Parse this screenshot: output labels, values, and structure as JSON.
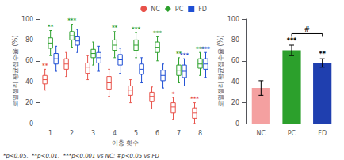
{
  "chart_data": [
    {
      "type": "boxplot",
      "xlabel": "이충 횟수",
      "ylabel": "로열젤리 평균접수율 (%)",
      "categories": [
        "1",
        "2",
        "3",
        "4",
        "5",
        "6",
        "7",
        "8"
      ],
      "series": [
        {
          "name": "NC",
          "color": "#E8524A",
          "marker": "circle",
          "values": [
            42,
            57,
            54,
            39,
            32,
            26,
            16,
            10
          ],
          "q1": [
            38,
            52,
            48,
            33,
            27,
            21,
            10,
            5
          ],
          "q3": [
            46,
            62,
            58,
            45,
            36,
            30,
            20,
            15
          ],
          "whislo": [
            32,
            45,
            42,
            26,
            20,
            14,
            4,
            0
          ],
          "whishi": [
            52,
            68,
            65,
            52,
            42,
            35,
            25,
            20
          ],
          "annotations": [
            "**",
            null,
            null,
            null,
            null,
            null,
            "*",
            "***"
          ]
        },
        {
          "name": "PC",
          "color": "#2CA02C",
          "marker": "diamond",
          "values": [
            77,
            84,
            67,
            75,
            75,
            73,
            51,
            57
          ],
          "q1": [
            72,
            80,
            63,
            70,
            70,
            68,
            46,
            53
          ],
          "q3": [
            82,
            88,
            71,
            80,
            80,
            78,
            56,
            62
          ],
          "whislo": [
            65,
            73,
            56,
            63,
            63,
            60,
            39,
            46
          ],
          "whishi": [
            89,
            95,
            78,
            88,
            87,
            83,
            63,
            68
          ],
          "annotations": [
            "**",
            "***",
            null,
            "**",
            "***",
            "***",
            "**",
            "***"
          ]
        },
        {
          "name": "FD",
          "color": "#1F4FD4",
          "marker": "square",
          "values": [
            62,
            79,
            63,
            61,
            52,
            46,
            50,
            57
          ],
          "q1": [
            57,
            75,
            58,
            56,
            47,
            41,
            44,
            52
          ],
          "q3": [
            67,
            83,
            68,
            66,
            57,
            51,
            56,
            62
          ],
          "whislo": [
            50,
            68,
            50,
            48,
            39,
            34,
            36,
            44
          ],
          "whishi": [
            74,
            90,
            74,
            72,
            63,
            57,
            62,
            68
          ],
          "annotations": [
            null,
            null,
            null,
            null,
            null,
            null,
            "***",
            "***"
          ]
        }
      ],
      "ylim": [
        0,
        100
      ],
      "yticks": [
        0,
        20,
        40,
        60,
        80,
        100
      ],
      "grid": false,
      "legend": "upper right",
      "note": "*p<0.05,  **p<0.01,  ***p<0.001 vs NC; #p<0.05 vs FD"
    },
    {
      "type": "bar",
      "ylabel": "로열젤리 평균접수율 (%)",
      "categories": [
        "NC",
        "PC",
        "FD"
      ],
      "values": [
        34,
        70,
        58
      ],
      "errors": [
        7,
        5,
        4
      ],
      "colors": [
        "#F4A0A0",
        "#2CA02C",
        "#1F3FAF"
      ],
      "annotations": [
        null,
        "***",
        "**"
      ],
      "bracket": {
        "from": "PC",
        "to": "FD",
        "y": 86,
        "text": "#"
      },
      "ylim": [
        0,
        100
      ],
      "yticks": [
        0,
        20,
        40,
        60,
        80,
        100
      ],
      "grid": false
    }
  ]
}
